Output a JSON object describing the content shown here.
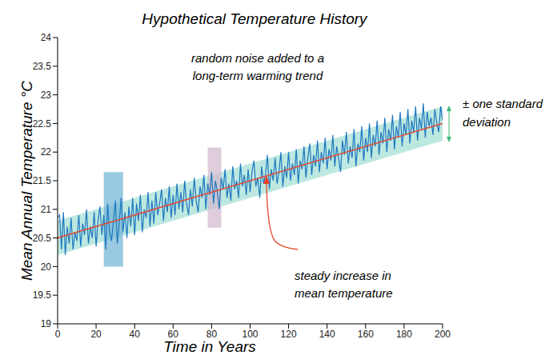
{
  "chart_data": {
    "type": "line",
    "title": "Hypothetical Temperature History",
    "x_label": "Time in Years",
    "y_label": "Mean Annual Temperature °C",
    "xlim": [
      0,
      200
    ],
    "xticks": [
      0,
      20,
      40,
      60,
      80,
      100,
      120,
      140,
      160,
      180,
      200
    ],
    "ylim": [
      19,
      24
    ],
    "yticks": [
      19,
      19.5,
      20,
      20.5,
      21,
      21.5,
      22,
      22.5,
      23,
      23.5,
      24
    ],
    "grid": false,
    "x": [
      0,
      1,
      2,
      3,
      4,
      5,
      6,
      7,
      8,
      9,
      10,
      11,
      12,
      13,
      14,
      15,
      16,
      17,
      18,
      19,
      20,
      21,
      22,
      23,
      24,
      25,
      26,
      27,
      28,
      29,
      30,
      31,
      32,
      33,
      34,
      35,
      36,
      37,
      38,
      39,
      40,
      41,
      42,
      43,
      44,
      45,
      46,
      47,
      48,
      49,
      50,
      51,
      52,
      53,
      54,
      55,
      56,
      57,
      58,
      59,
      60,
      61,
      62,
      63,
      64,
      65,
      66,
      67,
      68,
      69,
      70,
      71,
      72,
      73,
      74,
      75,
      76,
      77,
      78,
      79,
      80,
      81,
      82,
      83,
      84,
      85,
      86,
      87,
      88,
      89,
      90,
      91,
      92,
      93,
      94,
      95,
      96,
      97,
      98,
      99,
      100,
      101,
      102,
      103,
      104,
      105,
      106,
      107,
      108,
      109,
      110,
      111,
      112,
      113,
      114,
      115,
      116,
      117,
      118,
      119,
      120,
      121,
      122,
      123,
      124,
      125,
      126,
      127,
      128,
      129,
      130,
      131,
      132,
      133,
      134,
      135,
      136,
      137,
      138,
      139,
      140,
      141,
      142,
      143,
      144,
      145,
      146,
      147,
      148,
      149,
      150,
      151,
      152,
      153,
      154,
      155,
      156,
      157,
      158,
      159,
      160,
      161,
      162,
      163,
      164,
      165,
      166,
      167,
      168,
      169,
      170,
      171,
      172,
      173,
      174,
      175,
      176,
      177,
      178,
      179,
      180,
      181,
      182,
      183,
      184,
      185,
      186,
      187,
      188,
      189,
      190,
      191,
      192,
      193,
      194,
      195,
      196,
      197,
      198,
      199,
      200
    ],
    "series": [
      {
        "color": "#1f78c1",
        "line_style": "solid",
        "values": [
          20.85,
          20.9,
          20.3,
          20.95,
          20.2,
          20.7,
          20.4,
          20.85,
          20.3,
          20.6,
          20.45,
          20.9,
          20.35,
          20.75,
          20.55,
          21.0,
          20.4,
          20.7,
          20.5,
          20.95,
          20.35,
          20.8,
          21.05,
          20.55,
          20.9,
          20.3,
          21.1,
          20.6,
          20.45,
          20.8,
          21.15,
          20.4,
          20.75,
          21.2,
          20.6,
          20.95,
          20.5,
          21.05,
          20.7,
          21.2,
          20.55,
          21.1,
          20.8,
          21.25,
          20.6,
          21.0,
          20.85,
          21.3,
          20.7,
          21.15,
          20.75,
          21.3,
          20.9,
          21.1,
          21.35,
          20.8,
          21.2,
          20.95,
          21.4,
          20.85,
          21.25,
          20.9,
          21.45,
          21.0,
          21.3,
          20.95,
          21.5,
          21.1,
          20.9,
          21.35,
          21.05,
          21.55,
          21.15,
          20.95,
          21.4,
          21.2,
          21.6,
          21.0,
          21.45,
          21.25,
          21.65,
          21.1,
          21.5,
          21.3,
          21.0,
          21.55,
          21.35,
          21.7,
          21.2,
          21.45,
          21.15,
          21.75,
          21.35,
          21.5,
          21.2,
          21.8,
          21.4,
          21.6,
          21.25,
          21.7,
          21.3,
          21.65,
          21.85,
          21.4,
          21.55,
          21.2,
          21.75,
          21.45,
          21.6,
          21.95,
          21.35,
          21.7,
          21.5,
          21.9,
          21.45,
          21.65,
          22.0,
          21.4,
          21.75,
          21.55,
          22.0,
          21.5,
          21.8,
          21.6,
          22.05,
          21.45,
          21.85,
          21.7,
          22.1,
          21.55,
          21.9,
          22.15,
          21.6,
          21.95,
          21.75,
          22.2,
          21.65,
          22.0,
          21.8,
          22.25,
          21.7,
          22.05,
          21.85,
          22.3,
          21.75,
          22.1,
          21.9,
          21.65,
          22.2,
          21.95,
          22.35,
          21.8,
          22.1,
          21.9,
          22.4,
          21.75,
          22.15,
          22.0,
          22.45,
          21.85,
          22.25,
          22.0,
          22.5,
          21.9,
          22.3,
          22.1,
          22.55,
          21.95,
          22.35,
          22.15,
          22.6,
          22.0,
          22.4,
          22.2,
          22.65,
          22.05,
          22.45,
          22.25,
          22.7,
          22.1,
          22.5,
          22.3,
          22.75,
          22.15,
          22.55,
          22.35,
          22.8,
          22.2,
          22.6,
          22.4,
          22.85,
          22.25,
          22.7,
          22.45,
          22.6,
          22.3,
          22.75,
          22.5,
          22.35,
          22.8,
          22.55
        ]
      }
    ],
    "trend": {
      "x": [
        0,
        200
      ],
      "values": [
        20.5,
        22.5
      ],
      "color": "#e8452b"
    },
    "band": {
      "x": [
        0,
        200
      ],
      "lower": [
        20.2,
        22.2
      ],
      "upper": [
        20.8,
        22.8
      ],
      "color": "#8fd8cc"
    },
    "highlights": [
      {
        "x": [
          24,
          34
        ],
        "y": [
          20,
          21.65
        ],
        "color": "#6fb3d6"
      },
      {
        "x": [
          78,
          85
        ],
        "y": [
          20.68,
          22.08
        ],
        "color": "#d2b8cc"
      }
    ],
    "annotations": [
      {
        "lines": [
          "random noise added to a",
          "long-term warming trend"
        ]
      },
      {
        "lines": [
          "steady increase in",
          "mean temperature"
        ]
      },
      {
        "lines": [
          "± one standard",
          "deviation"
        ]
      }
    ]
  }
}
